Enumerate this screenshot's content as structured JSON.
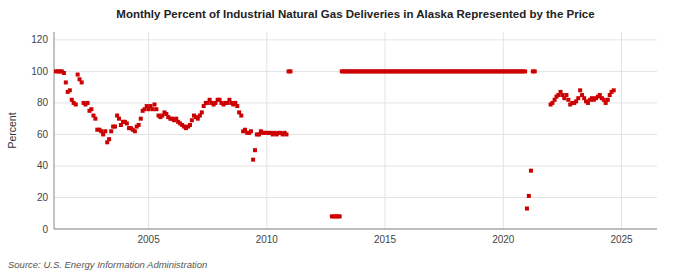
{
  "chart_data": {
    "type": "scatter",
    "title": "Monthly Percent of Industrial Natural Gas Deliveries in Alaska Represented by the Price",
    "ylabel": "Percent",
    "source": "Source: U.S. Energy Information Administration",
    "color": "#cc0000",
    "marker": "square",
    "grid": true,
    "xlim": [
      2001.0,
      2026.5
    ],
    "ylim": [
      0,
      125
    ],
    "yticks": [
      0,
      20,
      40,
      60,
      80,
      100,
      120
    ],
    "xticks": [
      2005,
      2010,
      2015,
      2020,
      2025
    ],
    "x": [
      2001.08,
      2001.17,
      2001.25,
      2001.33,
      2001.42,
      2001.5,
      2001.58,
      2001.67,
      2001.75,
      2001.83,
      2001.92,
      2002.0,
      2002.08,
      2002.17,
      2002.25,
      2002.33,
      2002.42,
      2002.5,
      2002.58,
      2002.67,
      2002.75,
      2002.83,
      2002.92,
      2003.0,
      2003.08,
      2003.17,
      2003.25,
      2003.33,
      2003.42,
      2003.5,
      2003.58,
      2003.67,
      2003.75,
      2003.83,
      2003.92,
      2004.0,
      2004.08,
      2004.17,
      2004.25,
      2004.33,
      2004.42,
      2004.5,
      2004.58,
      2004.67,
      2004.75,
      2004.83,
      2004.92,
      2005.0,
      2005.08,
      2005.17,
      2005.25,
      2005.33,
      2005.42,
      2005.5,
      2005.58,
      2005.67,
      2005.75,
      2005.83,
      2005.92,
      2006.0,
      2006.08,
      2006.17,
      2006.25,
      2006.33,
      2006.42,
      2006.5,
      2006.58,
      2006.67,
      2006.75,
      2006.83,
      2006.92,
      2007.0,
      2007.08,
      2007.17,
      2007.25,
      2007.33,
      2007.42,
      2007.5,
      2007.58,
      2007.67,
      2007.75,
      2007.83,
      2007.92,
      2008.0,
      2008.08,
      2008.17,
      2008.25,
      2008.33,
      2008.42,
      2008.5,
      2008.58,
      2008.67,
      2008.75,
      2008.83,
      2008.92,
      2009.0,
      2009.08,
      2009.17,
      2009.25,
      2009.33,
      2009.42,
      2009.5,
      2009.58,
      2009.67,
      2009.75,
      2009.83,
      2009.92,
      2010.0,
      2010.08,
      2010.17,
      2010.25,
      2010.33,
      2010.42,
      2010.5,
      2010.58,
      2010.67,
      2010.75,
      2010.83,
      2010.92,
      2011.0,
      2012.75,
      2012.83,
      2012.92,
      2013.0,
      2013.08,
      2013.17,
      2013.25,
      2013.33,
      2013.42,
      2013.5,
      2013.58,
      2013.67,
      2013.75,
      2013.83,
      2013.92,
      2014.0,
      2014.08,
      2014.17,
      2014.25,
      2014.33,
      2014.42,
      2014.5,
      2014.58,
      2014.67,
      2014.75,
      2014.83,
      2014.92,
      2015.0,
      2015.08,
      2015.17,
      2015.25,
      2015.33,
      2015.42,
      2015.5,
      2015.58,
      2015.67,
      2015.75,
      2015.83,
      2015.92,
      2016.0,
      2016.08,
      2016.17,
      2016.25,
      2016.33,
      2016.42,
      2016.5,
      2016.58,
      2016.67,
      2016.75,
      2016.83,
      2016.92,
      2017.0,
      2017.08,
      2017.17,
      2017.25,
      2017.33,
      2017.42,
      2017.5,
      2017.58,
      2017.67,
      2017.75,
      2017.83,
      2017.92,
      2018.0,
      2018.08,
      2018.17,
      2018.25,
      2018.33,
      2018.42,
      2018.5,
      2018.58,
      2018.67,
      2018.75,
      2018.83,
      2018.92,
      2019.0,
      2019.08,
      2019.17,
      2019.25,
      2019.33,
      2019.42,
      2019.5,
      2019.58,
      2019.67,
      2019.75,
      2019.83,
      2019.92,
      2020.0,
      2020.08,
      2020.17,
      2020.25,
      2020.33,
      2020.42,
      2020.5,
      2020.58,
      2020.67,
      2020.75,
      2020.83,
      2020.92,
      2021.0,
      2021.08,
      2021.17,
      2021.25,
      2021.33,
      2022.0,
      2022.08,
      2022.17,
      2022.25,
      2022.33,
      2022.42,
      2022.5,
      2022.58,
      2022.67,
      2022.75,
      2022.83,
      2022.92,
      2023.0,
      2023.08,
      2023.17,
      2023.25,
      2023.33,
      2023.42,
      2023.5,
      2023.58,
      2023.67,
      2023.75,
      2023.83,
      2023.92,
      2024.0,
      2024.08,
      2024.17,
      2024.25,
      2024.33,
      2024.42,
      2024.5,
      2024.58,
      2024.67
    ],
    "values": [
      100,
      100,
      100,
      100,
      99,
      93,
      87,
      88,
      82,
      80,
      79,
      98,
      95,
      93,
      80,
      79,
      80,
      75,
      76,
      72,
      70,
      63,
      63,
      62,
      60,
      62,
      55,
      57,
      62,
      65,
      65,
      72,
      70,
      66,
      68,
      68,
      67,
      64,
      64,
      63,
      62,
      65,
      66,
      70,
      75,
      76,
      78,
      76,
      78,
      76,
      79,
      76,
      72,
      71,
      72,
      74,
      73,
      71,
      70,
      70,
      69,
      70,
      68,
      67,
      66,
      65,
      64,
      65,
      66,
      69,
      72,
      71,
      70,
      72,
      74,
      78,
      80,
      80,
      82,
      80,
      79,
      80,
      82,
      82,
      80,
      79,
      80,
      80,
      82,
      80,
      79,
      80,
      78,
      74,
      72,
      62,
      63,
      61,
      61,
      62,
      44,
      50,
      60,
      60,
      62,
      61,
      61,
      61,
      61,
      61,
      60,
      61,
      60,
      61,
      61,
      60,
      61,
      60,
      100,
      100,
      8,
      8,
      8,
      8,
      8,
      100,
      100,
      100,
      100,
      100,
      100,
      100,
      100,
      100,
      100,
      100,
      100,
      100,
      100,
      100,
      100,
      100,
      100,
      100,
      100,
      100,
      100,
      100,
      100,
      100,
      100,
      100,
      100,
      100,
      100,
      100,
      100,
      100,
      100,
      100,
      100,
      100,
      100,
      100,
      100,
      100,
      100,
      100,
      100,
      100,
      100,
      100,
      100,
      100,
      100,
      100,
      100,
      100,
      100,
      100,
      100,
      100,
      100,
      100,
      100,
      100,
      100,
      100,
      100,
      100,
      100,
      100,
      100,
      100,
      100,
      100,
      100,
      100,
      100,
      100,
      100,
      100,
      100,
      100,
      100,
      100,
      100,
      100,
      100,
      100,
      100,
      100,
      100,
      100,
      100,
      100,
      100,
      100,
      100,
      13,
      21,
      37,
      100,
      100,
      79,
      80,
      82,
      84,
      85,
      87,
      85,
      83,
      85,
      82,
      79,
      80,
      80,
      81,
      83,
      88,
      85,
      83,
      81,
      80,
      82,
      83,
      82,
      83,
      84,
      85,
      83,
      82,
      80,
      82,
      85,
      87,
      88
    ]
  }
}
